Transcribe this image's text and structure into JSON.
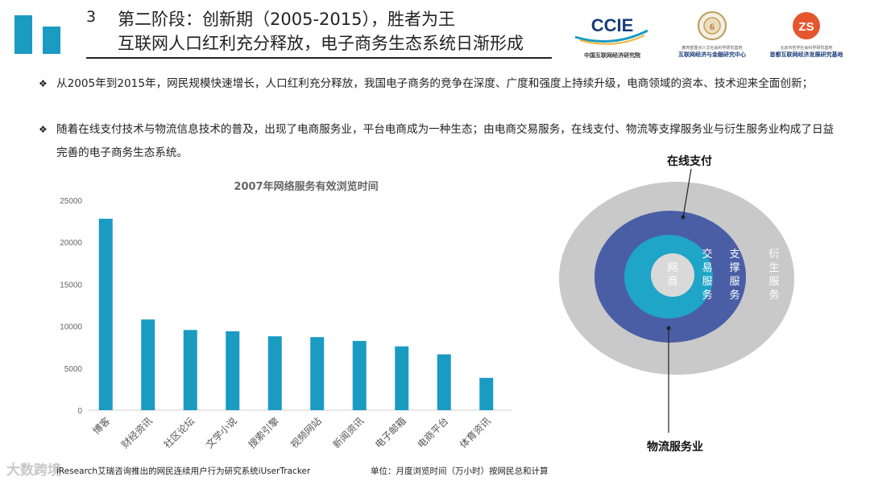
{
  "header": {
    "number": "3",
    "title_line1": "第二阶段：创新期（2005-2015），胜者为王",
    "title_line2": "互联网人口红利充分释放，电子商务生态系统日渐形成",
    "colors": {
      "accent": "#1a9bc2"
    }
  },
  "logos": [
    {
      "name": "CCIE",
      "caption": "中国互联网经济研究院"
    },
    {
      "name": "中央财经大学",
      "caption_small": "教育部重点人文社会科学研究基地",
      "caption": "互联网经济与金融研究中心"
    },
    {
      "name": "ZS",
      "caption_small": "北京市哲学社会科学研究基地",
      "caption": "首都互联网经济发展研究基地"
    }
  ],
  "bullets": [
    {
      "mark": "❖",
      "text": "从2005年到2015年，网民规模快速增长，人口红利充分释放，我国电子商务的竞争在深度、广度和强度上持续升级，电商领域的资本、技术迎来全面创新；"
    },
    {
      "mark": "❖",
      "text": "随着在线支付技术与物流信息技术的普及，出现了电商服务业，平台电商成为一种生态；由电商交易服务，在线支付、物流等支撑服务业与衍生服务业构成了日益完善的电子商务生态系统。"
    }
  ],
  "chart_data": {
    "type": "bar",
    "title": "2007年网络服务有效浏览时间",
    "categories": [
      "博客",
      "财经资讯",
      "社区论坛",
      "文学小说",
      "搜索引擎",
      "视频网站",
      "新闻资讯",
      "电子邮箱",
      "电商平台",
      "体育资讯"
    ],
    "values": [
      22800,
      10800,
      9550,
      9400,
      8800,
      8700,
      8250,
      7600,
      6650,
      3850
    ],
    "ylim": [
      0,
      25000
    ],
    "yticks": [
      "0",
      "5000",
      "10000",
      "15000",
      "20000",
      "25000"
    ],
    "xlabel": "",
    "ylabel": "",
    "bar_color": "#1a9bc2"
  },
  "footer": {
    "source": "iResearch艾瑞咨询推出的网民连续用户行为研究系统iUserTracker",
    "unit": "单位：月度浏览时间（万小时）按网民总和计算",
    "watermark": "大数跨境"
  },
  "diagram": {
    "rings": [
      {
        "label": "衍生服务",
        "color": "#c9c9c9"
      },
      {
        "label": "支撑服务",
        "color": "#4a5ea6"
      },
      {
        "label": "交易服务",
        "color": "#1fa5c7"
      },
      {
        "label": "网商",
        "color": "#d9d9d9"
      }
    ],
    "label_top": "在线支付",
    "label_bottom": "物流服务业"
  }
}
